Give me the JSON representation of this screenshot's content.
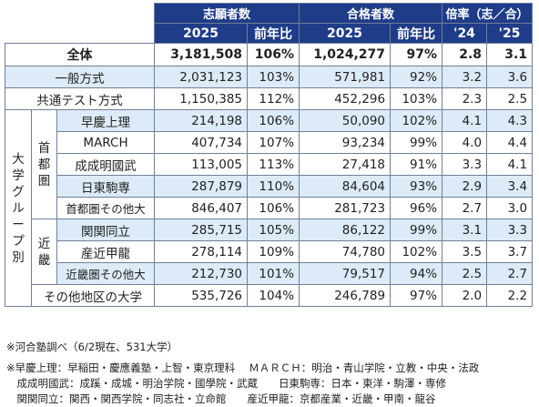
{
  "header": {
    "applicants": "志願者数",
    "passers": "合格者数",
    "ratio": "倍率（志／合）",
    "year": "2025",
    "yoy": "前年比",
    "y24": "'24",
    "y25": "'25"
  },
  "total": {
    "label": "全体",
    "app": "3,181,508",
    "app_yoy": "106%",
    "pass": "1,024,277",
    "pass_yoy": "97%",
    "r24": "2.8",
    "r25": "3.1"
  },
  "methods": [
    {
      "label": "一般方式",
      "app": "2,031,123",
      "app_yoy": "103%",
      "pass": "571,981",
      "pass_yoy": "92%",
      "r24": "3.2",
      "r25": "3.6"
    },
    {
      "label": "共通テスト方式",
      "app": "1,150,385",
      "app_yoy": "112%",
      "pass": "452,296",
      "pass_yoy": "103%",
      "r24": "2.3",
      "r25": "2.5"
    }
  ],
  "group_label": "大学グループ別",
  "region_shutoken": "首都圏",
  "region_kinki": "近畿",
  "shutoken": [
    {
      "label": "早慶上理",
      "app": "214,198",
      "app_yoy": "106%",
      "pass": "50,090",
      "pass_yoy": "102%",
      "r24": "4.1",
      "r25": "4.3"
    },
    {
      "label": "MARCH",
      "app": "407,734",
      "app_yoy": "107%",
      "pass": "93,234",
      "pass_yoy": "99%",
      "r24": "4.0",
      "r25": "4.4"
    },
    {
      "label": "成成明國武",
      "app": "113,005",
      "app_yoy": "113%",
      "pass": "27,418",
      "pass_yoy": "91%",
      "r24": "3.3",
      "r25": "4.1"
    },
    {
      "label": "日東駒専",
      "app": "287,879",
      "app_yoy": "110%",
      "pass": "84,604",
      "pass_yoy": "93%",
      "r24": "2.9",
      "r25": "3.4"
    },
    {
      "label": "首都圏その他大",
      "app": "846,407",
      "app_yoy": "106%",
      "pass": "281,723",
      "pass_yoy": "96%",
      "r24": "2.7",
      "r25": "3.0"
    }
  ],
  "kinki": [
    {
      "label": "関関同立",
      "app": "285,715",
      "app_yoy": "105%",
      "pass": "86,122",
      "pass_yoy": "99%",
      "r24": "3.1",
      "r25": "3.3"
    },
    {
      "label": "産近甲龍",
      "app": "278,114",
      "app_yoy": "109%",
      "pass": "74,780",
      "pass_yoy": "102%",
      "r24": "3.5",
      "r25": "3.7"
    },
    {
      "label": "近畿圏その他大",
      "app": "212,730",
      "app_yoy": "101%",
      "pass": "79,517",
      "pass_yoy": "94%",
      "r24": "2.5",
      "r25": "2.7"
    }
  ],
  "other": {
    "label": "その他地区の大学",
    "app": "535,726",
    "app_yoy": "104%",
    "pass": "246,789",
    "pass_yoy": "97%",
    "r24": "2.0",
    "r25": "2.2"
  },
  "notes": {
    "source": "※河合塾調べ（6/2現在、531大学）",
    "line1": "※早慶上理：早稲田・慶應義塾・上智・東京理科　 ＭＡＲＣＨ：明治・青山学院・立教・中央・法政",
    "line2": "　成成明國武：成蹊・成城・明治学院・國學院・武蔵　　日東駒専：日本・東洋・駒澤・専修",
    "line3": "　関関同立：関西・関西学院・同志社・立命館　　産近甲龍：京都産業・近畿・甲南・龍谷"
  },
  "colors": {
    "header_bg": "#1f3c88",
    "row_blue": "#dcebf7",
    "border": "#6f7f9a"
  }
}
